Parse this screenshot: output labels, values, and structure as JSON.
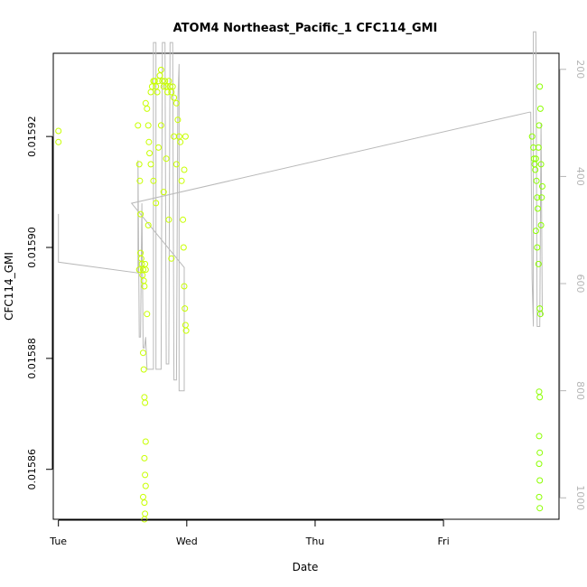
{
  "chart_data": {
    "type": "scatter",
    "title": "ATOM4 Northeast_Pacific_1 CFC114_GMI",
    "xlabel": "Date",
    "ylabel": "CFC114_GMI",
    "x_ticks": [
      "Tue",
      "Wed",
      "Thu",
      "Fri"
    ],
    "x_tick_positions": [
      0,
      1,
      2,
      3
    ],
    "xlim": [
      -0.04,
      3.9
    ],
    "y_ticks": [
      0.01586,
      0.01588,
      0.0159,
      0.01592
    ],
    "y_tick_labels": [
      "0.01586",
      "0.01588",
      "0.01590",
      "0.01592"
    ],
    "ylim": [
      0.015851,
      0.015935
    ],
    "y2_ticks": [
      200,
      400,
      600,
      800,
      1000
    ],
    "y2_tick_labels": [
      "200",
      "400",
      "600",
      "800",
      "1000"
    ],
    "y2lim": [
      1040,
      170
    ],
    "grid": false,
    "legend": "none",
    "colors": {
      "scatter_low": "#c8ff00",
      "scatter_high": "#8cff00",
      "line": "#b9b9b9",
      "right_axis": "#b5b5b5"
    },
    "series": [
      {
        "kind": "points",
        "points": [
          [
            0.0,
            0.015921
          ],
          [
            0.0,
            0.015919
          ],
          [
            0.63,
            0.015896
          ],
          [
            0.64,
            0.015899
          ],
          [
            0.645,
            0.015898
          ],
          [
            0.65,
            0.015897
          ],
          [
            0.655,
            0.015895
          ],
          [
            0.66,
            0.015896
          ],
          [
            0.665,
            0.015894
          ],
          [
            0.67,
            0.015893
          ],
          [
            0.675,
            0.015897
          ],
          [
            0.68,
            0.015896
          ],
          [
            0.62,
            0.015922
          ],
          [
            0.63,
            0.015915
          ],
          [
            0.635,
            0.015912
          ],
          [
            0.64,
            0.015906
          ],
          [
            0.66,
            0.015881
          ],
          [
            0.665,
            0.015878
          ],
          [
            0.67,
            0.015873
          ],
          [
            0.675,
            0.015872
          ],
          [
            0.68,
            0.015865
          ],
          [
            0.67,
            0.015862
          ],
          [
            0.675,
            0.015859
          ],
          [
            0.68,
            0.015857
          ],
          [
            0.67,
            0.015854
          ],
          [
            0.675,
            0.015852
          ],
          [
            0.67,
            0.015851
          ],
          [
            0.66,
            0.015855
          ],
          [
            0.69,
            0.015888
          ],
          [
            0.7,
            0.015904
          ],
          [
            0.68,
            0.015926
          ],
          [
            0.69,
            0.015925
          ],
          [
            0.7,
            0.015922
          ],
          [
            0.705,
            0.015919
          ],
          [
            0.71,
            0.015917
          ],
          [
            0.72,
            0.015928
          ],
          [
            0.73,
            0.015929
          ],
          [
            0.74,
            0.01593
          ],
          [
            0.75,
            0.01593
          ],
          [
            0.76,
            0.015929
          ],
          [
            0.77,
            0.015928
          ],
          [
            0.78,
            0.01593
          ],
          [
            0.79,
            0.015931
          ],
          [
            0.8,
            0.015932
          ],
          [
            0.81,
            0.01593
          ],
          [
            0.82,
            0.015929
          ],
          [
            0.83,
            0.01593
          ],
          [
            0.84,
            0.015929
          ],
          [
            0.85,
            0.015928
          ],
          [
            0.86,
            0.01593
          ],
          [
            0.87,
            0.015929
          ],
          [
            0.88,
            0.015928
          ],
          [
            0.89,
            0.015929
          ],
          [
            0.9,
            0.015927
          ],
          [
            0.72,
            0.015915
          ],
          [
            0.74,
            0.015912
          ],
          [
            0.76,
            0.015908
          ],
          [
            0.78,
            0.015918
          ],
          [
            0.8,
            0.015922
          ],
          [
            0.82,
            0.01591
          ],
          [
            0.84,
            0.015916
          ],
          [
            0.86,
            0.015905
          ],
          [
            0.88,
            0.015898
          ],
          [
            0.9,
            0.01592
          ],
          [
            0.92,
            0.015915
          ],
          [
            0.92,
            0.015926
          ],
          [
            0.93,
            0.015923
          ],
          [
            0.94,
            0.01592
          ],
          [
            0.95,
            0.015919
          ],
          [
            0.96,
            0.015912
          ],
          [
            0.97,
            0.015905
          ],
          [
            0.975,
            0.0159
          ],
          [
            0.98,
            0.015893
          ],
          [
            0.985,
            0.015889
          ],
          [
            0.99,
            0.015886
          ],
          [
            0.995,
            0.015885
          ],
          [
            0.98,
            0.015914
          ],
          [
            0.99,
            0.01592
          ],
          [
            3.69,
            0.01592
          ],
          [
            3.7,
            0.015918
          ],
          [
            3.705,
            0.015916
          ],
          [
            3.71,
            0.015915
          ],
          [
            3.715,
            0.015914
          ],
          [
            3.72,
            0.015916
          ],
          [
            3.725,
            0.015912
          ],
          [
            3.73,
            0.015909
          ],
          [
            3.735,
            0.015907
          ],
          [
            3.74,
            0.015918
          ],
          [
            3.745,
            0.015922
          ],
          [
            3.75,
            0.015929
          ],
          [
            3.755,
            0.015925
          ],
          [
            3.76,
            0.015915
          ],
          [
            3.765,
            0.015909
          ],
          [
            3.72,
            0.015903
          ],
          [
            3.73,
            0.0159
          ],
          [
            3.74,
            0.015897
          ],
          [
            3.75,
            0.015889
          ],
          [
            3.755,
            0.015888
          ],
          [
            3.745,
            0.015874
          ],
          [
            3.75,
            0.015873
          ],
          [
            3.745,
            0.015866
          ],
          [
            3.75,
            0.015863
          ],
          [
            3.745,
            0.015861
          ],
          [
            3.75,
            0.015858
          ],
          [
            3.745,
            0.015855
          ],
          [
            3.75,
            0.015853
          ],
          [
            3.76,
            0.015904
          ],
          [
            3.77,
            0.015911
          ]
        ]
      },
      {
        "kind": "line",
        "points": [
          [
            0.0,
            470
          ],
          [
            0.0,
            560
          ],
          [
            0.62,
            580
          ],
          [
            0.62,
            370
          ],
          [
            0.63,
            700
          ],
          [
            0.64,
            700
          ],
          [
            0.65,
            450
          ],
          [
            0.66,
            720
          ],
          [
            0.67,
            720
          ],
          [
            0.68,
            700
          ],
          [
            0.69,
            760
          ],
          [
            0.71,
            760
          ],
          [
            0.72,
            760
          ],
          [
            0.74,
            760
          ],
          [
            0.74,
            150
          ],
          [
            0.76,
            150
          ],
          [
            0.76,
            760
          ],
          [
            0.8,
            760
          ],
          [
            0.81,
            150
          ],
          [
            0.83,
            150
          ],
          [
            0.84,
            750
          ],
          [
            0.86,
            750
          ],
          [
            0.87,
            150
          ],
          [
            0.89,
            150
          ],
          [
            0.9,
            780
          ],
          [
            0.92,
            780
          ],
          [
            0.93,
            260
          ],
          [
            0.94,
            190
          ],
          [
            0.94,
            800
          ],
          [
            0.98,
            800
          ],
          [
            0.98,
            570
          ],
          [
            0.57,
            450
          ],
          [
            3.67,
            280
          ],
          [
            3.68,
            280
          ],
          [
            3.69,
            590
          ],
          [
            3.7,
            680
          ],
          [
            3.7,
            130
          ],
          [
            3.72,
            130
          ],
          [
            3.73,
            680
          ],
          [
            3.75,
            680
          ],
          [
            3.76,
            300
          ],
          [
            3.77,
            660
          ]
        ]
      }
    ]
  }
}
